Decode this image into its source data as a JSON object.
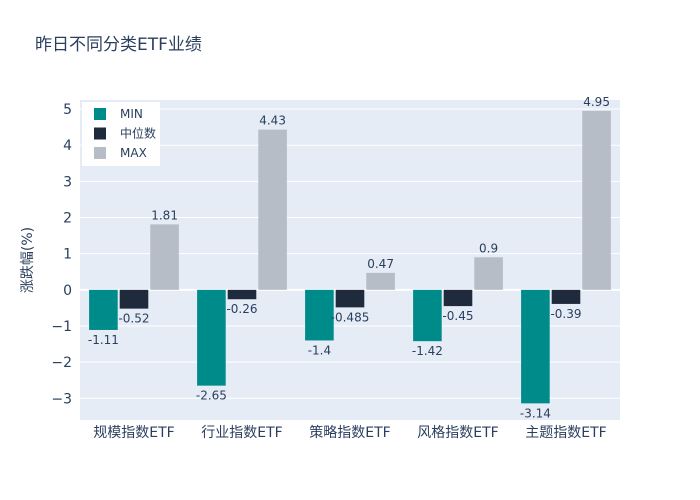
{
  "chart_data": {
    "type": "bar",
    "title": "昨日不同分类ETF业绩",
    "xlabel": "",
    "ylabel": "涨跌幅(%)",
    "categories": [
      "规模指数ETF",
      "行业指数ETF",
      "策略指数ETF",
      "风格指数ETF",
      "主题指数ETF"
    ],
    "series": [
      {
        "name": "MIN",
        "color": "#008b8b",
        "values": [
          -1.11,
          -2.65,
          -1.4,
          -1.42,
          -3.14
        ],
        "labels": [
          "-1.11",
          "-2.65",
          "-1.4",
          "-1.42",
          "-3.14"
        ]
      },
      {
        "name": "中位数",
        "color": "#1f2a3c",
        "values": [
          -0.52,
          -0.26,
          -0.485,
          -0.45,
          -0.39
        ],
        "labels": [
          "-0.52",
          "-0.26",
          "-0.485",
          "-0.45",
          "-0.39"
        ]
      },
      {
        "name": "MAX",
        "color": "#b6bdc6",
        "values": [
          1.81,
          4.43,
          0.47,
          0.9,
          4.95
        ],
        "labels": [
          "1.81",
          "4.43",
          "0.47",
          "0.9",
          "4.95"
        ]
      }
    ],
    "yticks": [
      -3,
      -2,
      -1,
      0,
      1,
      2,
      3,
      4,
      5
    ],
    "ytick_labels": [
      "−3",
      "−2",
      "−1",
      "0",
      "1",
      "2",
      "3",
      "4",
      "5"
    ],
    "ylim": [
      -3.6,
      5.25
    ],
    "grid": true,
    "legend_position": "top-left",
    "plot_bg": "#e5ecf6"
  }
}
